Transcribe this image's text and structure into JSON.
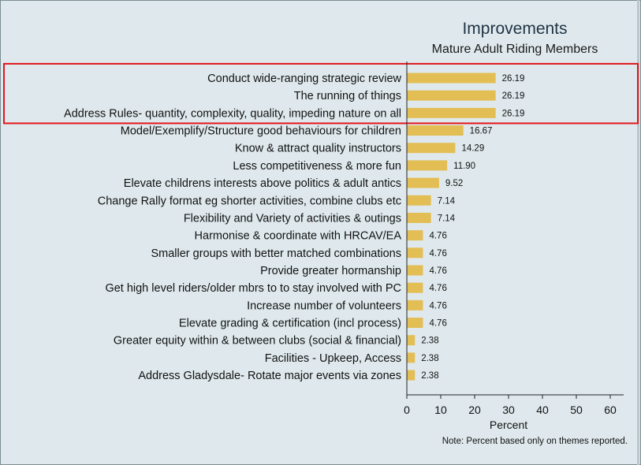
{
  "chart_data": {
    "type": "bar",
    "orientation": "horizontal",
    "title": "Improvements",
    "subtitle": "Mature Adult Riding Members",
    "xlabel": "Percent",
    "ylabel": "",
    "xlim": [
      0,
      60
    ],
    "xticks": [
      0,
      10,
      20,
      30,
      40,
      50,
      60
    ],
    "note": "Note: Percent based only on themes reported.",
    "bar_color": "#e2be55",
    "highlight_color": "#e0161b",
    "highlighted_count": 3,
    "categories": [
      "Conduct wide-ranging strategic review",
      "The running of things",
      "Address Rules- quantity, complexity, quality, impeding nature on all",
      "Model/Exemplify/Structure good behaviours for children",
      "Know & attract quality instructors",
      "Less competitiveness & more fun",
      "Elevate childrens interests above politics & adult antics",
      "Change Rally format eg shorter activities, combine clubs etc",
      "Flexibility and Variety of activities & outings",
      "Harmonise & coordinate with HRCAV/EA",
      "Smaller groups with better matched combinations",
      "Provide greater hormanship",
      "Get high level riders/older mbrs to to stay involved with PC",
      "Increase number of volunteers",
      "Elevate grading & certification (incl process)",
      "Greater equity within & between clubs (social & financial)",
      "Facilities - Upkeep, Access",
      "Address Gladysdale- Rotate major events via zones"
    ],
    "values": [
      26.19,
      26.19,
      26.19,
      16.67,
      14.29,
      11.9,
      9.52,
      7.14,
      7.14,
      4.76,
      4.76,
      4.76,
      4.76,
      4.76,
      4.76,
      2.38,
      2.38,
      2.38
    ],
    "value_labels": [
      "26.19",
      "26.19",
      "26.19",
      "16.67",
      "14.29",
      "11.90",
      "9.52",
      "7.14",
      "7.14",
      "4.76",
      "4.76",
      "4.76",
      "4.76",
      "4.76",
      "4.76",
      "2.38",
      "2.38",
      "2.38"
    ]
  }
}
